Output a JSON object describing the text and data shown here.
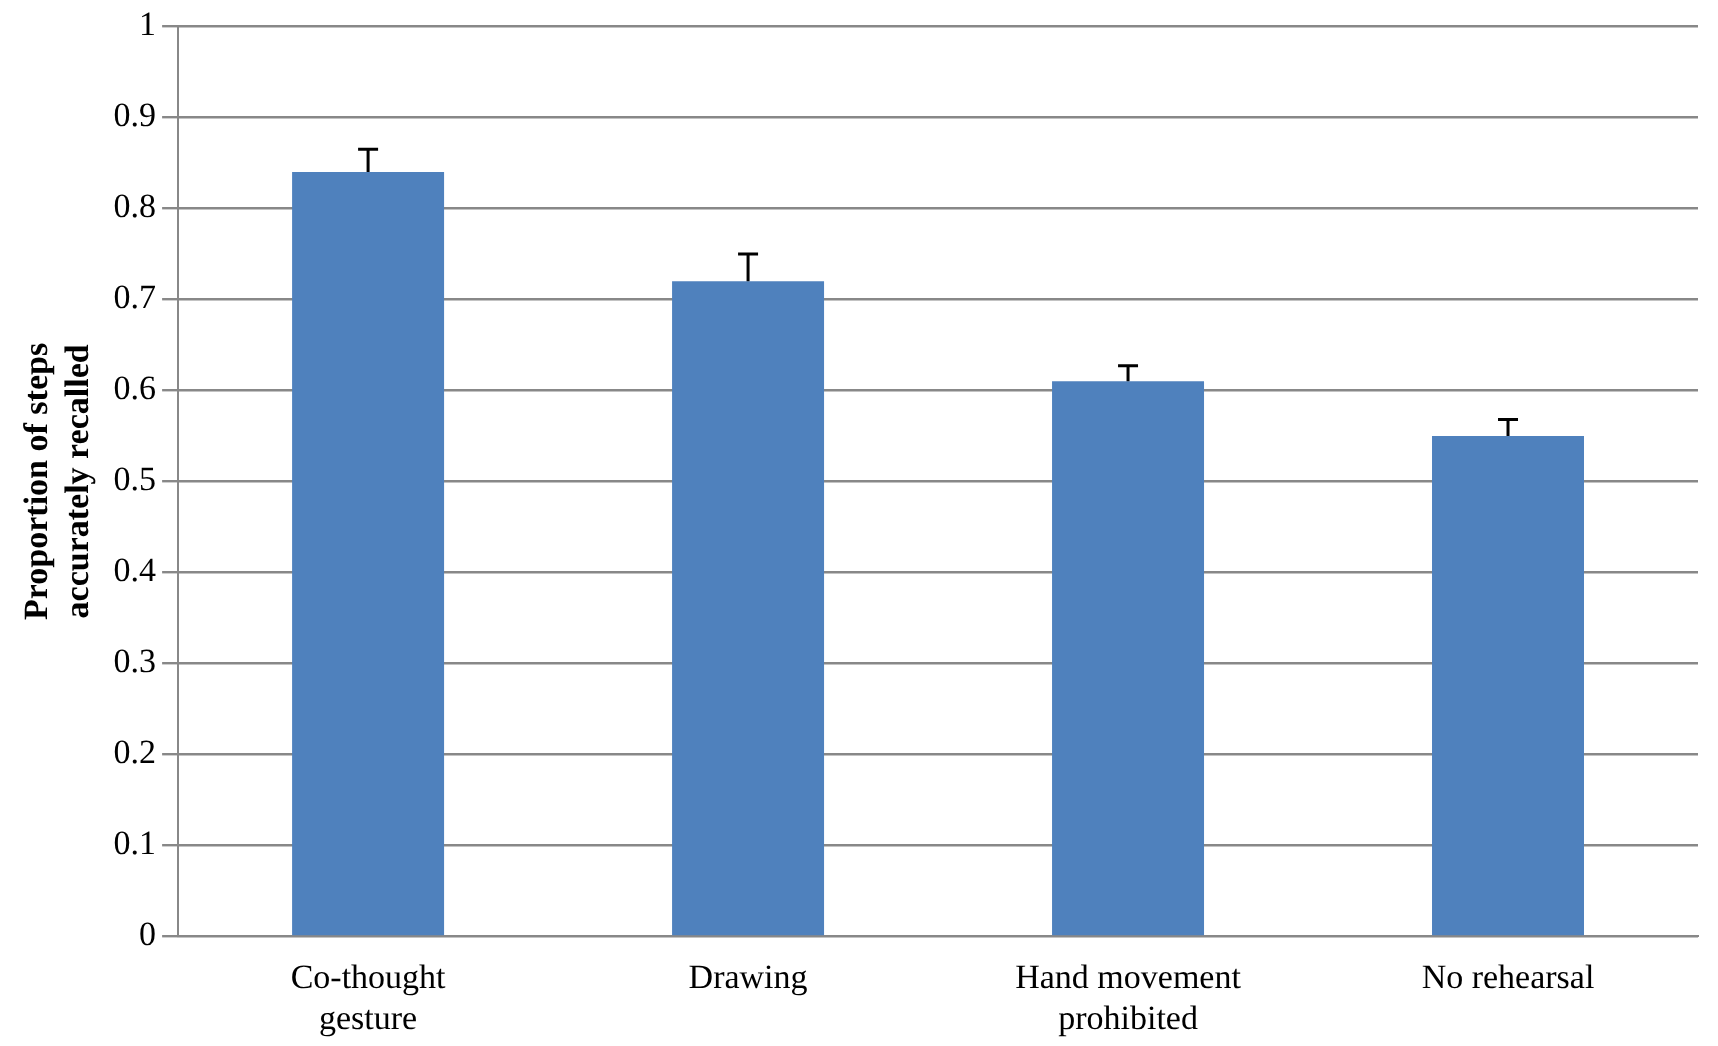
{
  "chart_data": {
    "type": "bar",
    "ylabel": "Proportion of steps accurately recalled",
    "categories": [
      "Co-thought gesture",
      "Drawing",
      "Hand movement prohibited",
      "No rehearsal"
    ],
    "values": [
      0.84,
      0.72,
      0.61,
      0.55
    ],
    "errors": [
      [
        0.84,
        0.865
      ],
      [
        0.72,
        0.75
      ],
      [
        0.61,
        0.627
      ],
      [
        0.55,
        0.568
      ]
    ],
    "color": "#4f81bd",
    "ylim": [
      0,
      1
    ],
    "yticks": [
      0,
      0.1,
      0.2,
      0.3,
      0.4,
      0.5,
      0.6,
      0.7,
      0.8,
      0.9,
      1
    ],
    "grid": "y",
    "legend": false
  }
}
